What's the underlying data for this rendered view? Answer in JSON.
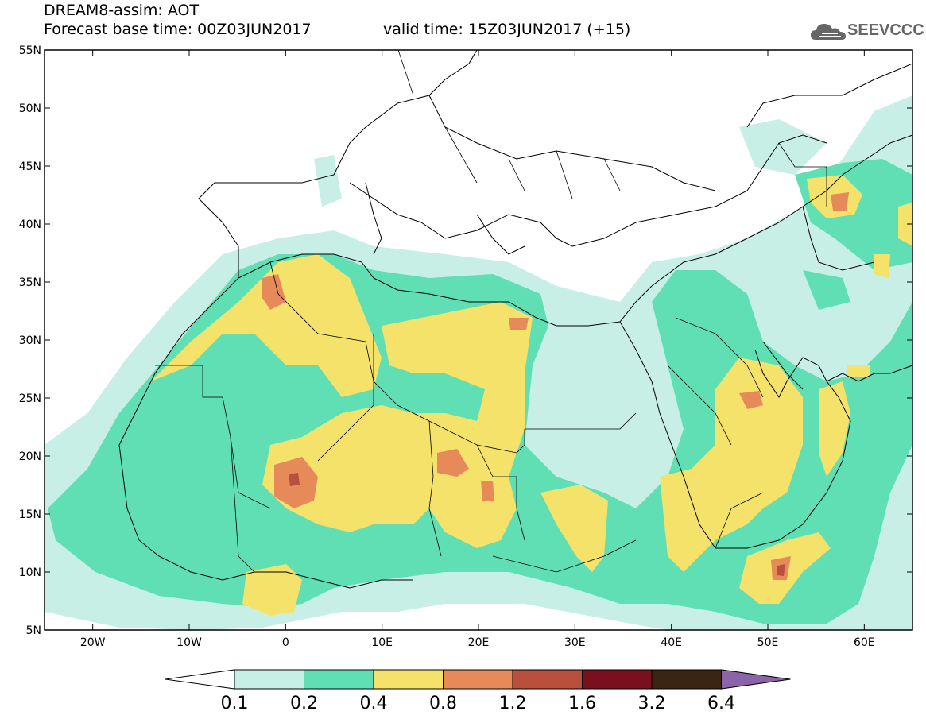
{
  "header": {
    "title": "DREAM8-assim: AOT",
    "base_time": "Forecast base time: 00Z03JUN2017",
    "valid_time": "valid time: 15Z03JUN2017 (+15)"
  },
  "logo": {
    "text": "SEEVCCC",
    "icon": "cloud-icon"
  },
  "map": {
    "projection": "lat-lon",
    "lon_range": [
      -25,
      65
    ],
    "lat_range": [
      5,
      55
    ],
    "lat_labels": [
      "55N",
      "50N",
      "45N",
      "40N",
      "35N",
      "30N",
      "25N",
      "20N",
      "15N",
      "10N",
      "5N"
    ],
    "lon_labels": [
      "20W",
      "10W",
      "0",
      "10E",
      "20E",
      "30E",
      "40E",
      "50E",
      "60E"
    ]
  },
  "colorbar": {
    "labels": [
      "0.1",
      "0.2",
      "0.4",
      "0.8",
      "1.2",
      "1.6",
      "3.2",
      "6.4"
    ],
    "colors": [
      "#ffffff",
      "#c7efe6",
      "#5fdfb3",
      "#f5e26b",
      "#e68a5a",
      "#b8503d",
      "#7a0f1e",
      "#3b2412",
      "#8b63a8"
    ],
    "extend": "both"
  },
  "palette": {
    "c1": "#c7efe6",
    "c2": "#5fdfb3",
    "c3": "#f5e26b",
    "c4": "#e68a5a",
    "c5": "#b8503d",
    "border": "#000000"
  }
}
